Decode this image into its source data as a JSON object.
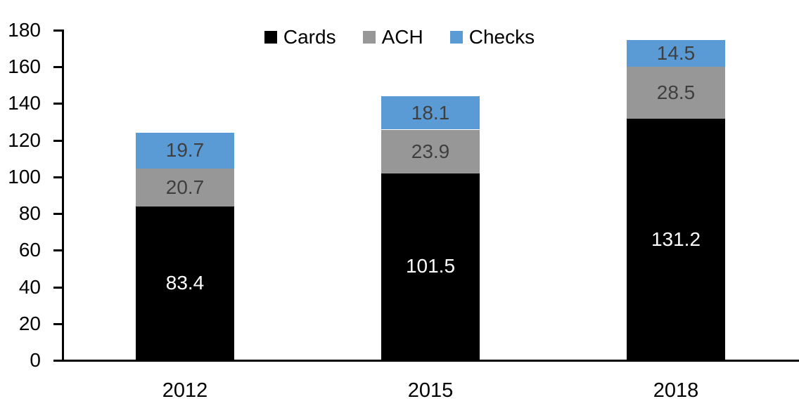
{
  "chart_data": {
    "type": "bar",
    "stacked": true,
    "title": "",
    "xlabel": "",
    "ylabel": "",
    "categories": [
      "2012",
      "2015",
      "2018"
    ],
    "series": [
      {
        "name": "Cards",
        "color": "#000000",
        "label_color": "#ffffff",
        "values": [
          83.4,
          101.5,
          131.2
        ]
      },
      {
        "name": "ACH",
        "color": "#979797",
        "label_color": "#3f3f3f",
        "values": [
          20.7,
          23.9,
          28.5
        ]
      },
      {
        "name": "Checks",
        "color": "#5b9bd5",
        "label_color": "#3f3f3f",
        "values": [
          19.7,
          18.1,
          14.5
        ]
      }
    ],
    "totals": [
      123.8,
      143.5,
      174.2
    ],
    "ylim": [
      0,
      180
    ],
    "ytick_step": 20,
    "ytick_labels": [
      "0",
      "20",
      "40",
      "60",
      "80",
      "100",
      "120",
      "140",
      "160",
      "180"
    ],
    "grid": false,
    "legend_position": "top-center",
    "axis_color": "#000000"
  }
}
